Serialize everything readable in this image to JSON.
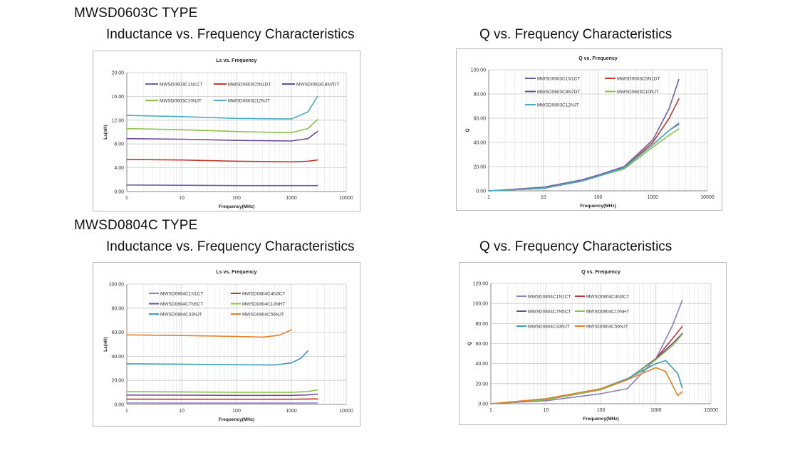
{
  "sections": [
    {
      "type_label": "MWSD0603C TYPE",
      "left_heading": "Inductance vs. Frequency Characteristics",
      "right_heading": "Q vs. Frequency Characteristics"
    },
    {
      "type_label": "MWSD0804C TYPE",
      "left_heading": "Inductance vs. Frequency Characteristics",
      "right_heading": "Q vs. Frequency Characteristics"
    }
  ],
  "chart_data": [
    {
      "type": "line",
      "title": "Ls vs. Frequency",
      "xlabel": "Frequency(MHz)",
      "ylabel": "Ls(nH)",
      "x_scale": "log",
      "xlim": [
        1,
        10000
      ],
      "ylim": [
        0,
        20
      ],
      "x_ticks": [
        "1",
        "10",
        "100",
        "1000",
        "10000"
      ],
      "y_ticks": [
        "0.00",
        "4.00",
        "8.00",
        "12.00",
        "16.00",
        "20.00"
      ],
      "legend": "top",
      "series": [
        {
          "name": "MWSD0603C1N1CT",
          "color": "#7060a0",
          "x": [
            1,
            10,
            100,
            1000,
            3000
          ],
          "values": [
            1.1,
            1.05,
            1.0,
            1.0,
            1.0
          ]
        },
        {
          "name": "MWSD0603C5N1DT",
          "color": "#c0392b",
          "x": [
            1,
            10,
            100,
            1000,
            2000,
            3000
          ],
          "values": [
            5.4,
            5.3,
            5.1,
            5.0,
            5.1,
            5.3
          ]
        },
        {
          "name": "MWSD0603C8N7DT",
          "color": "#6e4a9e",
          "x": [
            1,
            10,
            100,
            1000,
            2000,
            3000
          ],
          "values": [
            8.9,
            8.8,
            8.6,
            8.5,
            8.9,
            10.1
          ]
        },
        {
          "name": "MWSD0603C10NJT",
          "color": "#8bc34a",
          "x": [
            1,
            10,
            100,
            1000,
            2000,
            3000
          ],
          "values": [
            10.6,
            10.4,
            10.1,
            9.9,
            10.6,
            12.1
          ]
        },
        {
          "name": "MWSD0603C12NJT",
          "color": "#4aacc5",
          "x": [
            1,
            10,
            100,
            1000,
            2000,
            3000
          ],
          "values": [
            12.8,
            12.6,
            12.3,
            12.2,
            13.4,
            16.0
          ]
        }
      ]
    },
    {
      "type": "line",
      "title": "Q vs. Frequency",
      "xlabel": "Frequency(MHz)",
      "ylabel": "Q",
      "x_scale": "log",
      "xlim": [
        1,
        10000
      ],
      "ylim": [
        0,
        100
      ],
      "x_ticks": [
        "1",
        "10",
        "100",
        "1000",
        "10000"
      ],
      "y_ticks": [
        "0.00",
        "20.00",
        "40.00",
        "60.00",
        "80.00",
        "100.00"
      ],
      "legend": "top-left",
      "series": [
        {
          "name": "MWSD0603C1N1CT",
          "color": "#7060a0",
          "x": [
            1,
            10,
            50,
            100,
            300,
            1000,
            2000,
            3000
          ],
          "values": [
            0,
            3,
            9,
            13,
            20,
            42,
            68,
            92
          ]
        },
        {
          "name": "MWSD0603C5N1DT",
          "color": "#c0392b",
          "x": [
            1,
            10,
            50,
            100,
            300,
            1000,
            2000,
            3000
          ],
          "values": [
            0,
            2,
            8,
            12,
            19,
            40,
            60,
            76
          ]
        },
        {
          "name": "MWSD0603C8N7DT",
          "color": "#6e4a9e",
          "x": [
            1,
            10,
            50,
            100,
            300,
            1000,
            2000,
            3000
          ],
          "values": [
            0,
            2,
            8,
            12,
            19,
            38,
            50,
            55
          ]
        },
        {
          "name": "MWSD0603C10NJT",
          "color": "#8bc34a",
          "x": [
            1,
            10,
            50,
            100,
            300,
            1000,
            2000,
            3000
          ],
          "values": [
            0,
            2,
            8,
            12,
            18,
            36,
            46,
            51
          ]
        },
        {
          "name": "MWSD0603C12NJT",
          "color": "#4aacc5",
          "x": [
            1,
            10,
            50,
            100,
            300,
            1000,
            2000,
            3000
          ],
          "values": [
            0,
            2,
            8,
            12,
            19,
            38,
            50,
            56
          ]
        }
      ]
    },
    {
      "type": "line",
      "title": "Ls vs. Frequency",
      "xlabel": "Frequency(MHz)",
      "ylabel": "Ls(nH)",
      "x_scale": "log",
      "xlim": [
        1,
        10000
      ],
      "ylim": [
        0,
        100
      ],
      "x_ticks": [
        "1",
        "10",
        "100",
        "1000",
        "10000"
      ],
      "y_ticks": [
        "0.00",
        "20.00",
        "40.00",
        "60.00",
        "80.00",
        "100.00"
      ],
      "legend": "top",
      "series": [
        {
          "name": "MWSD0804C1N1CT",
          "color": "#8e7cc3",
          "x": [
            1,
            10,
            100,
            1000,
            3000
          ],
          "values": [
            1.2,
            1.1,
            1.1,
            1.1,
            1.2
          ]
        },
        {
          "name": "MWSD0804C4N3CT",
          "color": "#c0392b",
          "x": [
            1,
            10,
            100,
            1000,
            3000
          ],
          "values": [
            4.4,
            4.3,
            4.3,
            4.3,
            4.6
          ]
        },
        {
          "name": "MWSD0804C7N5CT",
          "color": "#6e4a9e",
          "x": [
            1,
            10,
            100,
            1000,
            2000,
            3000
          ],
          "values": [
            7.8,
            7.7,
            7.5,
            7.5,
            7.9,
            8.6
          ]
        },
        {
          "name": "MWSD0804C10NHT",
          "color": "#8bc34a",
          "x": [
            1,
            10,
            100,
            1000,
            2000,
            3000
          ],
          "values": [
            10.6,
            10.4,
            10.1,
            10.1,
            10.7,
            12.1
          ]
        },
        {
          "name": "MWSD0804C33NJT",
          "color": "#3a9ec0",
          "x": [
            1,
            10,
            100,
            500,
            1000,
            1500,
            2000
          ],
          "values": [
            33.8,
            33.5,
            33.0,
            32.8,
            34.5,
            38.5,
            44.5
          ]
        },
        {
          "name": "MWSD0804C56NJT",
          "color": "#e67e22",
          "x": [
            1,
            10,
            100,
            300,
            600,
            1000
          ],
          "values": [
            57.8,
            57.3,
            56.5,
            56.0,
            57.5,
            62.0
          ]
        }
      ]
    },
    {
      "type": "line",
      "title": "Q vs. Frequency",
      "xlabel": "Frequency(MHz)",
      "ylabel": "Q",
      "x_scale": "log",
      "xlim": [
        1,
        10000
      ],
      "ylim": [
        0,
        120
      ],
      "x_ticks": [
        "1",
        "10",
        "100",
        "1000",
        "10000"
      ],
      "y_ticks": [
        "0.00",
        "20.00",
        "40.00",
        "60.00",
        "80.00",
        "100.00",
        "120.00"
      ],
      "legend": "top-left",
      "series": [
        {
          "name": "MWSD0804C1N1CT",
          "color": "#8e7cc3",
          "x": [
            1,
            10,
            100,
            300,
            1000,
            2000,
            3000
          ],
          "values": [
            0,
            3,
            10,
            15,
            45,
            78,
            103
          ]
        },
        {
          "name": "MWSD0804C4N3CT",
          "color": "#c0392b",
          "x": [
            1,
            10,
            100,
            300,
            1000,
            2000,
            3000
          ],
          "values": [
            0,
            4,
            14,
            24,
            45,
            65,
            77
          ]
        },
        {
          "name": "MWSD0804C7N5CT",
          "color": "#6e4a9e",
          "x": [
            1,
            10,
            100,
            300,
            1000,
            2000,
            3000
          ],
          "values": [
            0,
            4,
            14,
            24,
            45,
            60,
            70
          ]
        },
        {
          "name": "MWSD0804C10NHT",
          "color": "#8bc34a",
          "x": [
            1,
            10,
            100,
            300,
            1000,
            2000,
            3000
          ],
          "values": [
            0,
            4,
            14,
            24,
            44,
            58,
            69
          ]
        },
        {
          "name": "MWSD0804C33NJT",
          "color": "#3a9ec0",
          "x": [
            1,
            10,
            100,
            300,
            1000,
            1500,
            2500,
            3000
          ],
          "values": [
            0,
            5,
            15,
            25,
            40,
            43,
            30,
            16
          ]
        },
        {
          "name": "MWSD0804C56NJT",
          "color": "#e67e22",
          "x": [
            1,
            10,
            100,
            300,
            1000,
            1500,
            2500,
            3000
          ],
          "values": [
            0,
            5,
            15,
            24,
            36,
            32,
            8,
            12
          ]
        }
      ]
    }
  ]
}
